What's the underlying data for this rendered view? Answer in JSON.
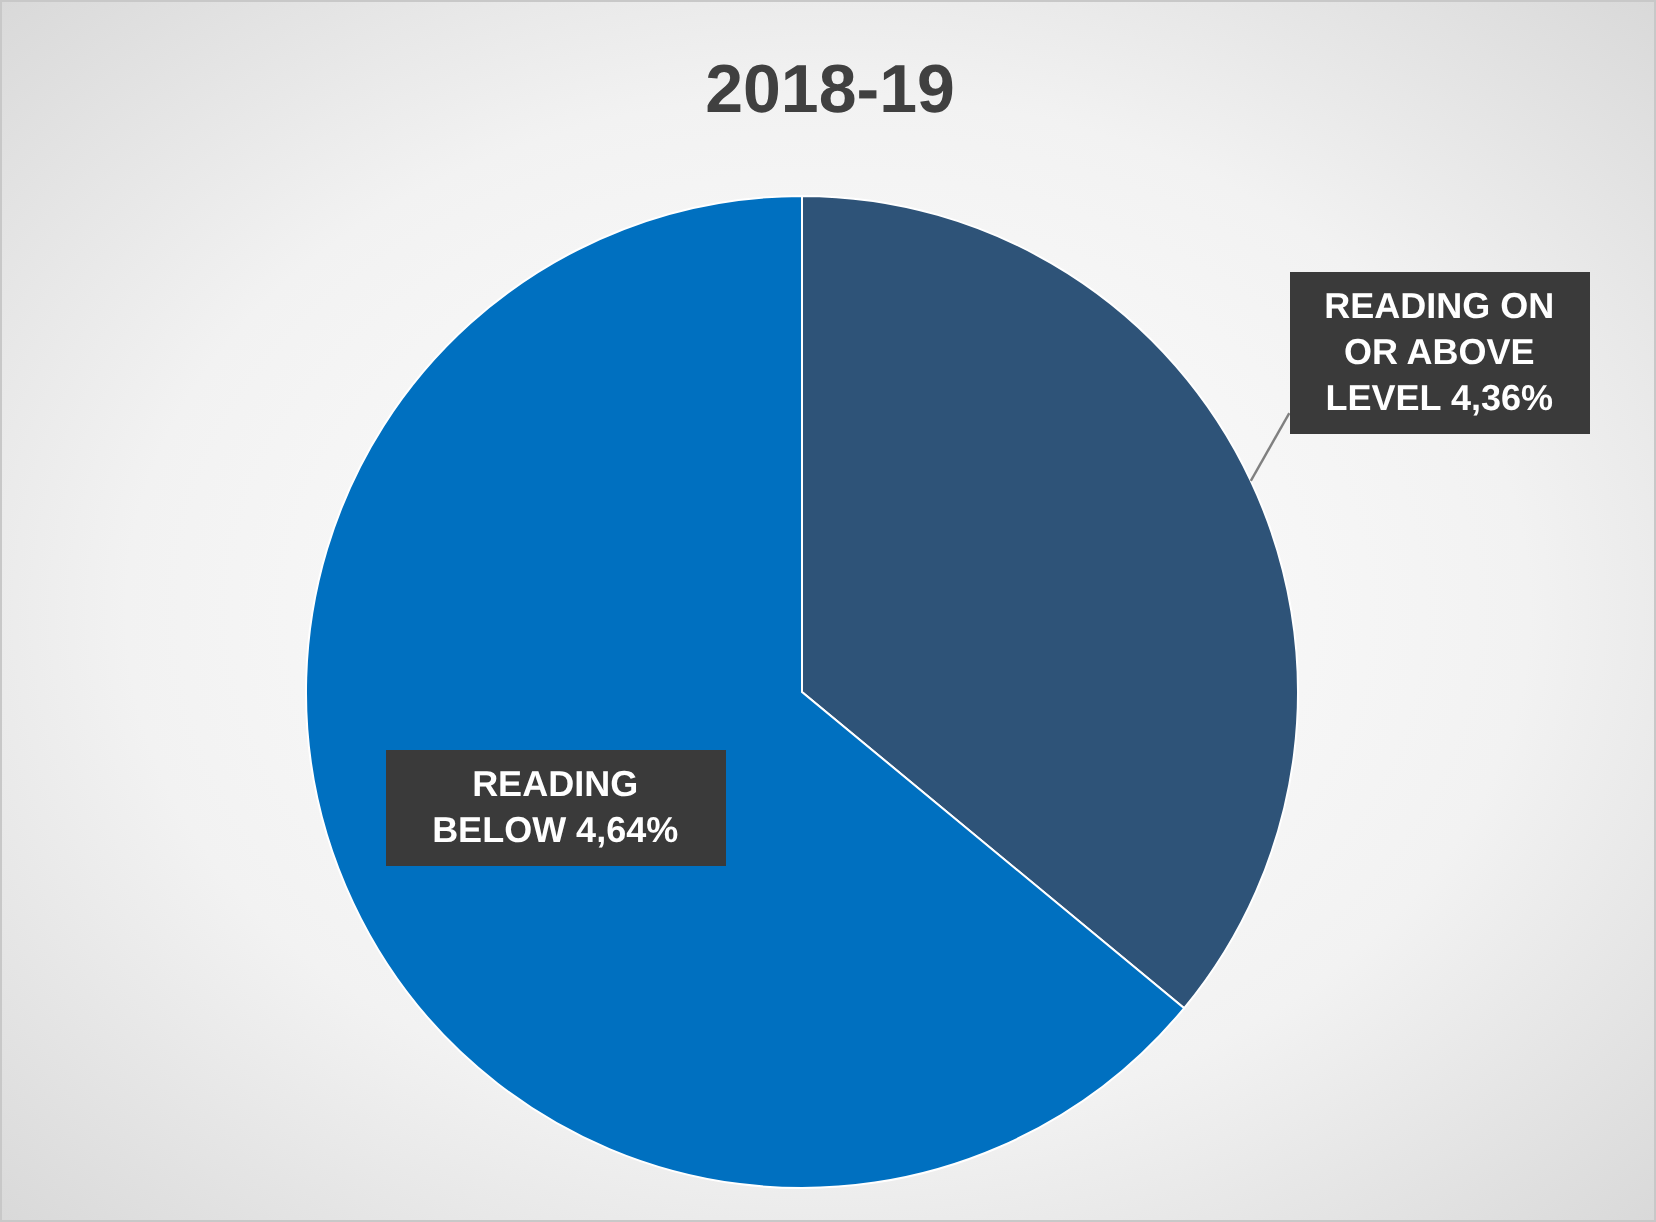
{
  "chart_data": {
    "type": "pie",
    "title": "2018-19",
    "categories": [
      "READING ON OR ABOVE LEVEL 4",
      "READING BELOW 4"
    ],
    "values": [
      36,
      64
    ],
    "value_labels": [
      "36%",
      "64%"
    ],
    "colors": [
      "#2e5378",
      "#0070c0"
    ]
  }
}
